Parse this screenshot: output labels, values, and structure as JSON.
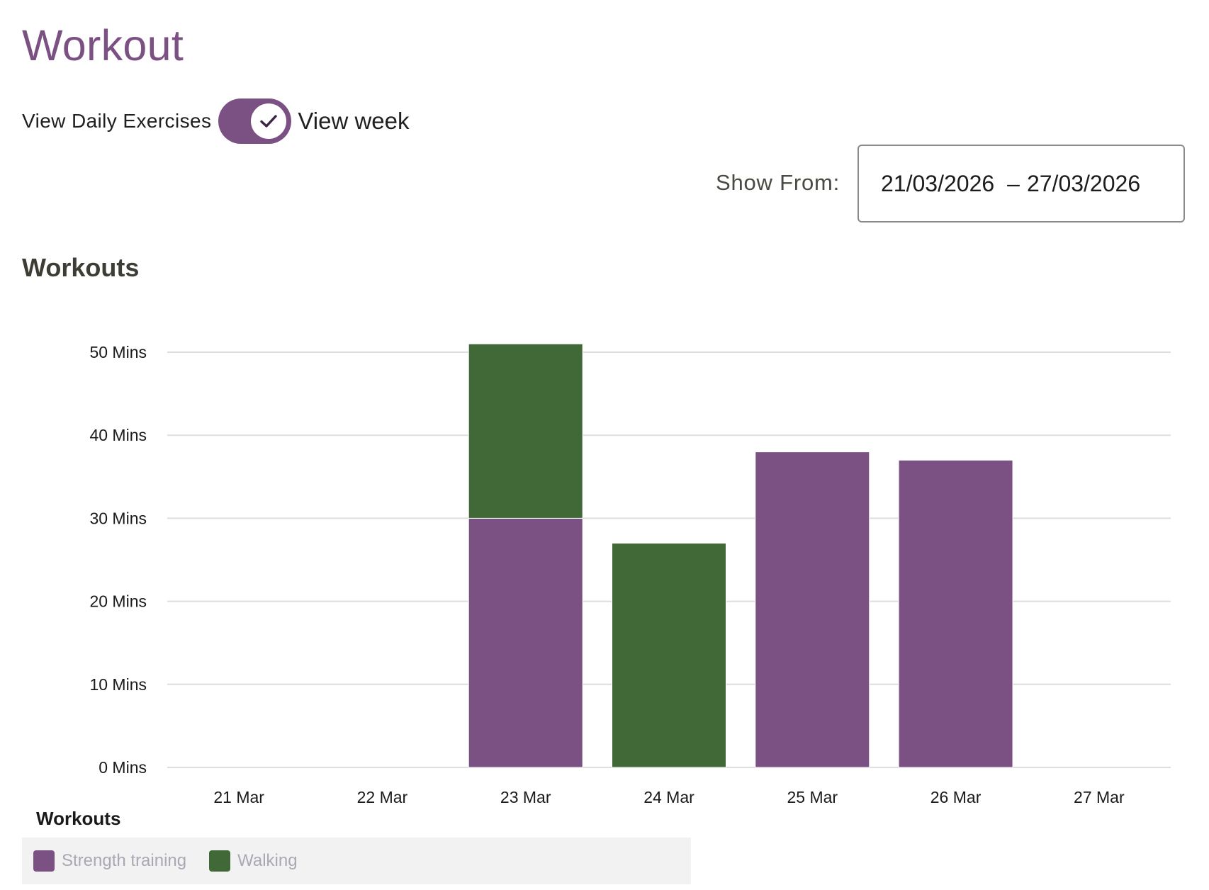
{
  "page": {
    "title": "Workout"
  },
  "view_toggle": {
    "left_label": "View Daily Exercises",
    "right_label": "View week",
    "checked": true
  },
  "date_range": {
    "label": "Show From:",
    "start": "21/03/2026",
    "separator": "–",
    "end": "27/03/2026"
  },
  "section": {
    "title": "Workouts"
  },
  "chart_data": {
    "type": "bar",
    "stacked": true,
    "categories": [
      "21 Mar",
      "22 Mar",
      "23 Mar",
      "24 Mar",
      "25 Mar",
      "26 Mar",
      "27 Mar"
    ],
    "series": [
      {
        "name": "Strength training",
        "color": "#7b5083",
        "values": [
          0,
          0,
          30,
          0,
          38,
          37,
          0
        ]
      },
      {
        "name": "Walking",
        "color": "#416937",
        "values": [
          0,
          0,
          21,
          27,
          0,
          0,
          0
        ]
      }
    ],
    "y_ticks": [
      0,
      10,
      20,
      30,
      40,
      50
    ],
    "y_tick_labels": [
      "0 Mins",
      "10 Mins",
      "20 Mins",
      "30 Mins",
      "40 Mins",
      "50 Mins"
    ],
    "ylim": [
      0,
      50
    ],
    "grid": true,
    "legend_position": "bottom-left",
    "legend_title": "Workouts"
  }
}
